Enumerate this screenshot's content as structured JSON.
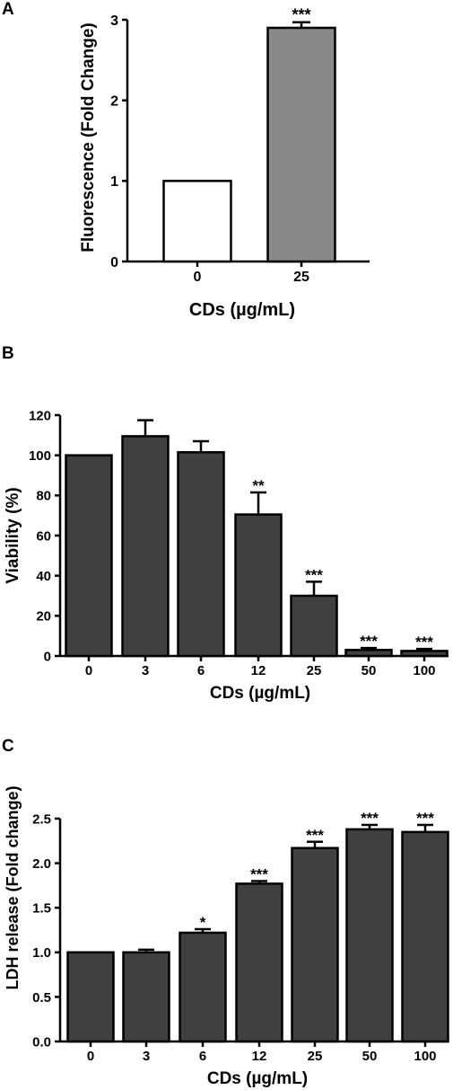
{
  "chart_data": [
    {
      "panel_label": "A",
      "type": "bar",
      "xlabel": "CDs (µg/mL)",
      "ylabel": "Fluorescence (Fold Change)",
      "ylim": [
        0,
        3
      ],
      "yticks": [
        "0",
        "1",
        "2",
        "3"
      ],
      "categories": [
        "0",
        "25"
      ],
      "values": [
        1.0,
        2.9
      ],
      "errors": [
        0,
        0.07
      ],
      "significance": [
        "",
        "***"
      ],
      "bar_colors": [
        "#ffffff",
        "#888888"
      ]
    },
    {
      "panel_label": "B",
      "type": "bar",
      "xlabel": "CDs (µg/mL)",
      "ylabel": "Viability (%)",
      "ylim": [
        0,
        120
      ],
      "yticks": [
        "0",
        "20",
        "40",
        "60",
        "80",
        "100",
        "120"
      ],
      "categories": [
        "0",
        "3",
        "6",
        "12",
        "25",
        "50",
        "100"
      ],
      "values": [
        100,
        109.5,
        101.5,
        70.5,
        30,
        3,
        2.5
      ],
      "errors": [
        0,
        8,
        5.5,
        11,
        7,
        1,
        1
      ],
      "significance": [
        "",
        "",
        "",
        "**",
        "***",
        "***",
        "***"
      ],
      "bar_colors": [
        "#404040",
        "#404040",
        "#404040",
        "#404040",
        "#404040",
        "#404040",
        "#404040"
      ]
    },
    {
      "panel_label": "C",
      "type": "bar",
      "xlabel": "CDs (µg/mL)",
      "ylabel": "LDH release (Fold change)",
      "ylim": [
        0,
        2.5
      ],
      "yticks": [
        "0.0",
        "0.5",
        "1.0",
        "1.5",
        "2.0",
        "2.5"
      ],
      "categories": [
        "0",
        "3",
        "6",
        "12",
        "25",
        "50",
        "100"
      ],
      "values": [
        1.0,
        1.0,
        1.22,
        1.77,
        2.17,
        2.38,
        2.35
      ],
      "errors": [
        0,
        0.03,
        0.04,
        0.03,
        0.07,
        0.05,
        0.08
      ],
      "significance": [
        "",
        "",
        "*",
        "***",
        "***",
        "***",
        "***"
      ],
      "bar_colors": [
        "#404040",
        "#404040",
        "#404040",
        "#404040",
        "#404040",
        "#404040",
        "#404040"
      ]
    }
  ]
}
